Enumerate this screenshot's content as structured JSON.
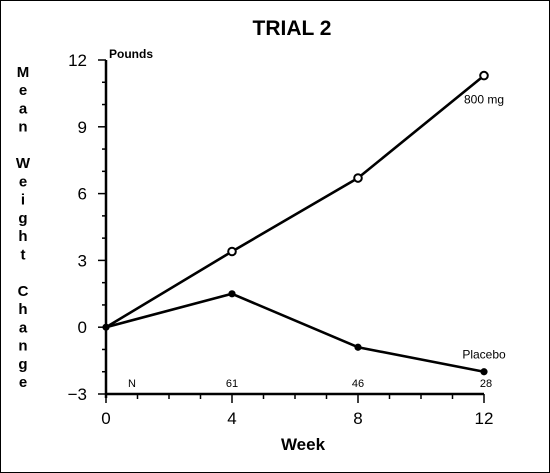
{
  "chart_data": {
    "type": "line",
    "title": "TRIAL 2",
    "xlabel": "Week",
    "ylabel": "Mean Weight Change",
    "y_unit": "Pounds",
    "x": [
      0,
      4,
      8,
      12
    ],
    "x_ticks": [
      "0",
      "4",
      "8",
      "12"
    ],
    "y_ticks": [
      "12",
      "9",
      "6",
      "3",
      "0",
      "−3"
    ],
    "ylim": [
      -3,
      12
    ],
    "xlim": [
      0,
      12
    ],
    "grid": false,
    "series": [
      {
        "name": "800 mg",
        "values": [
          0,
          3.4,
          6.7,
          11.3
        ],
        "marker": "open-circle",
        "color": "#000000"
      },
      {
        "name": "Placebo",
        "values": [
          0,
          1.5,
          -0.9,
          -2.0
        ],
        "marker": "filled-circle",
        "color": "#000000"
      }
    ],
    "n_row": {
      "label": "N",
      "values": [
        "61",
        "46",
        "28"
      ]
    }
  }
}
